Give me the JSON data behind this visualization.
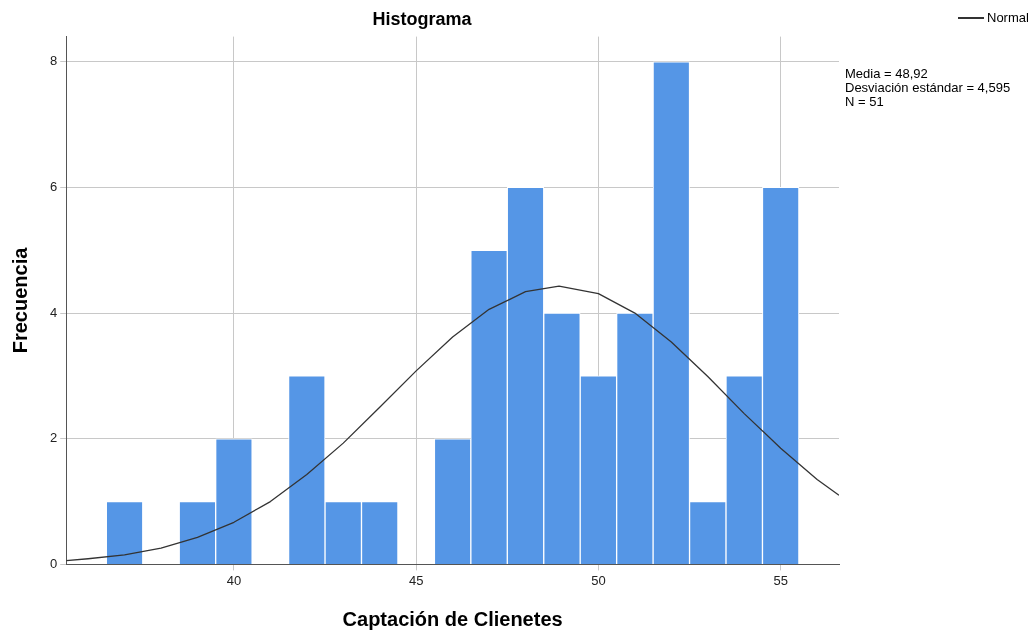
{
  "chart_data": {
    "type": "histogram",
    "title": "Histograma",
    "xlabel": "Captación de Clienetes",
    "ylabel": "Frecuencia",
    "bins": [
      36.5,
      37.5,
      38.5,
      39.5,
      40.5,
      41.5,
      42.5,
      43.5,
      44.5,
      45.5,
      46.5,
      47.5,
      48.5,
      49.5,
      50.5,
      51.5,
      52.5,
      53.5,
      54.5,
      55.5
    ],
    "values": [
      1,
      0,
      1,
      2,
      0,
      3,
      1,
      1,
      0,
      2,
      5,
      6,
      4,
      3,
      4,
      8,
      1,
      3,
      6
    ],
    "color": "#5596e6",
    "series": [
      {
        "name": "Normal",
        "type": "line",
        "color": "#333333",
        "x": [
          35.4,
          36,
          37,
          38,
          39,
          40,
          41,
          42,
          43,
          44,
          45,
          46,
          47,
          48,
          48.92,
          50,
          51,
          52,
          53,
          54,
          55,
          56,
          56.6
        ],
        "values": [
          0.06,
          0.09,
          0.15,
          0.26,
          0.43,
          0.67,
          1.0,
          1.43,
          1.93,
          2.5,
          3.08,
          3.62,
          4.06,
          4.34,
          4.43,
          4.31,
          4.0,
          3.54,
          2.99,
          2.4,
          1.85,
          1.35,
          1.1
        ]
      }
    ],
    "xlim": [
      35.4,
      56.6
    ],
    "xticks": [
      40,
      45,
      50,
      55
    ],
    "ylim": [
      0,
      8.4
    ],
    "yticks": [
      0,
      2,
      4,
      6,
      8
    ],
    "grid": true,
    "legend": "top right",
    "marker": "none",
    "annotations": [
      "Media = 48,92\nDesviación estándar = 4,595\nN = 51"
    ]
  }
}
